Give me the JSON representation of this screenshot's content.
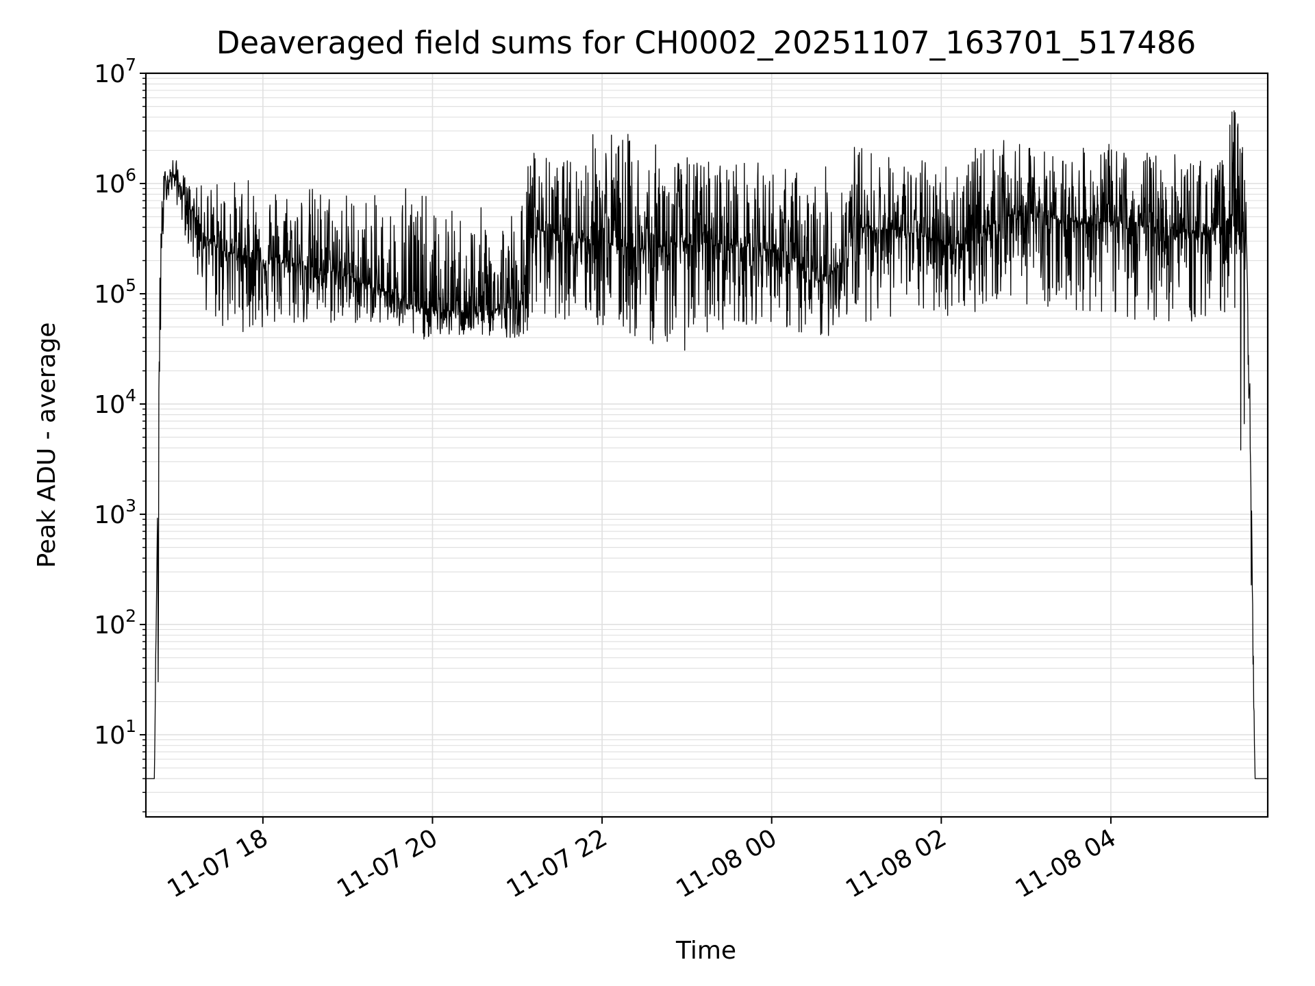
{
  "chart_data": {
    "type": "line",
    "title": "Deaveraged field sums for CH0002_20251107_163701_517486",
    "xlabel": "Time",
    "ylabel": "Peak ADU - average",
    "yscale": "log",
    "grid": true,
    "line_color": "#000000",
    "grid_color": "#e0e0e0",
    "xlim_hours": [
      16.62,
      29.85
    ],
    "ylim": [
      1.8,
      10000000
    ],
    "x_ticks": [
      {
        "hour": 18,
        "label": "11-07 18"
      },
      {
        "hour": 20,
        "label": "11-07 20"
      },
      {
        "hour": 22,
        "label": "11-07 22"
      },
      {
        "hour": 24,
        "label": "11-08 00"
      },
      {
        "hour": 26,
        "label": "11-08 02"
      },
      {
        "hour": 28,
        "label": "11-08 04"
      }
    ],
    "y_ticks": [
      {
        "value": 10,
        "base": "10",
        "exp": "1"
      },
      {
        "value": 100,
        "base": "10",
        "exp": "2"
      },
      {
        "value": 1000,
        "base": "10",
        "exp": "3"
      },
      {
        "value": 10000,
        "base": "10",
        "exp": "4"
      },
      {
        "value": 100000,
        "base": "10",
        "exp": "5"
      },
      {
        "value": 1000000,
        "base": "10",
        "exp": "6"
      },
      {
        "value": 10000000,
        "base": "10",
        "exp": "7"
      }
    ],
    "series": [
      {
        "name": "Peak ADU - average",
        "note": "envelope of a dense noisy trace; hour = hours since 11-07 00:00",
        "hour": [
          16.62,
          16.7,
          16.72,
          16.78,
          16.8,
          16.85,
          16.95,
          17.1,
          17.2,
          17.35,
          17.5,
          18.0,
          18.5,
          19.0,
          19.3,
          19.6,
          19.7,
          20.0,
          20.5,
          21.05,
          21.15,
          21.5,
          22.0,
          22.5,
          23.0,
          23.5,
          24.0,
          24.3,
          24.5,
          24.8,
          25.0,
          25.5,
          26.0,
          26.3,
          26.7,
          27.0,
          27.5,
          28.0,
          28.5,
          29.0,
          29.3,
          29.45,
          29.6,
          29.65,
          29.7,
          29.85
        ],
        "baseline": [
          4,
          4,
          4,
          30000,
          300000,
          1000000,
          1200000,
          700000,
          500000,
          300000,
          250000,
          200000,
          180000,
          150000,
          110000,
          100000,
          80000,
          70000,
          70000,
          75000,
          400000,
          350000,
          300000,
          250000,
          300000,
          280000,
          250000,
          200000,
          120000,
          180000,
          400000,
          380000,
          300000,
          280000,
          500000,
          550000,
          450000,
          450000,
          400000,
          350000,
          400000,
          550000,
          300000,
          2000,
          4,
          4
        ],
        "high": [
          4,
          4,
          4,
          80000,
          900000,
          1600000,
          1800000,
          1100000,
          900000,
          1100000,
          1100000,
          1100000,
          1000000,
          900000,
          800000,
          700000,
          1700000,
          600000,
          600000,
          700000,
          2300000,
          1500000,
          3800000,
          2500000,
          1800000,
          1800000,
          1500000,
          1400000,
          1200000,
          1800000,
          2500000,
          1700000,
          1700000,
          2000000,
          2500000,
          2200000,
          2000000,
          2300000,
          2000000,
          1800000,
          1600000,
          5800000,
          1500000,
          5000,
          4,
          4
        ],
        "low": [
          4,
          4,
          4,
          4,
          150000,
          700000,
          800000,
          300000,
          150000,
          60000,
          45000,
          45000,
          50000,
          50000,
          55000,
          45000,
          35000,
          40000,
          40000,
          40000,
          50000,
          60000,
          45000,
          35000,
          30000,
          50000,
          55000,
          40000,
          27000,
          55000,
          55000,
          60000,
          60000,
          65000,
          80000,
          80000,
          70000,
          60000,
          55000,
          50000,
          60000,
          90000,
          100,
          4,
          4,
          4
        ]
      }
    ]
  }
}
